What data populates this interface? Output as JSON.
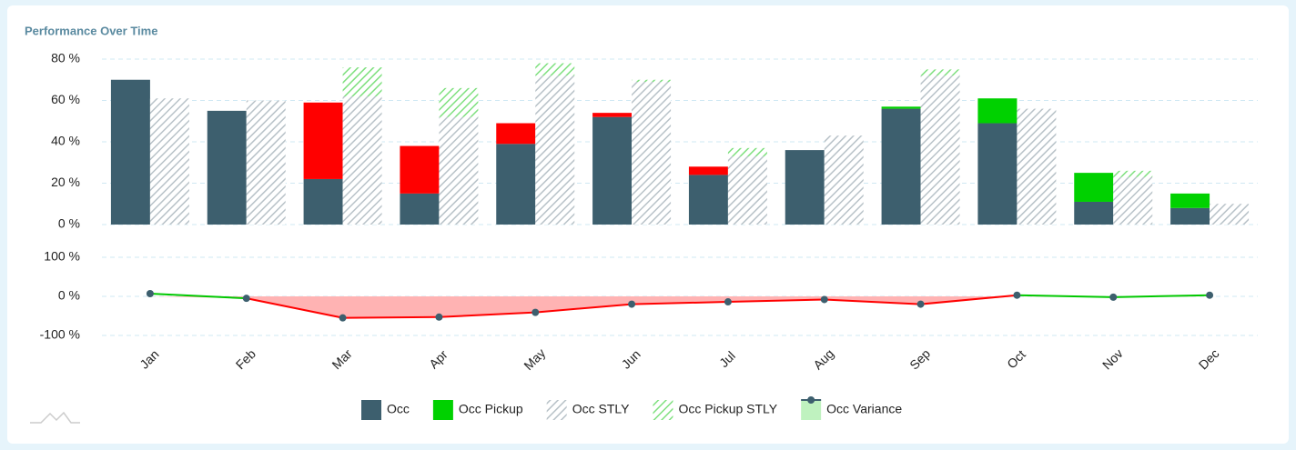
{
  "chart_data": {
    "type": "bar",
    "title": "Performance Over Time",
    "categories": [
      "Jan",
      "Feb",
      "Mar",
      "Apr",
      "May",
      "Jun",
      "Jul",
      "Aug",
      "Sep",
      "Oct",
      "Nov",
      "Dec"
    ],
    "ylim": [
      0,
      80
    ],
    "yticks": [
      {
        "value": 0,
        "label": "0 %"
      },
      {
        "value": 20,
        "label": "20 %"
      },
      {
        "value": 40,
        "label": "40 %"
      },
      {
        "value": 60,
        "label": "60 %"
      },
      {
        "value": 80,
        "label": "80 %"
      }
    ],
    "y2lim": [
      -100,
      100
    ],
    "y2ticks": [
      {
        "value": -100,
        "label": "-100 %"
      },
      {
        "value": 0,
        "label": "0 %"
      },
      {
        "value": 100,
        "label": "100 %"
      }
    ],
    "grid": true,
    "series": [
      {
        "name": "Occ",
        "color": "#3d5f6e",
        "stack": "a",
        "values": [
          70,
          55,
          22,
          15,
          39,
          52,
          24,
          36,
          56,
          49,
          11,
          8
        ]
      },
      {
        "name": "Occ Pickup",
        "color": "#00d100",
        "stack": "a",
        "point_colors": [
          "#00d100",
          "#00d100",
          "#ff0000",
          "#ff0000",
          "#ff0000",
          "#ff0000",
          "#ff0000",
          "#00d100",
          "#00d100",
          "#00d100",
          "#00d100",
          "#00d100"
        ],
        "values": [
          0,
          0,
          37,
          23,
          10,
          2,
          4,
          0,
          1,
          12,
          14,
          7
        ]
      },
      {
        "name": "Occ STLY",
        "color": "#b8c2c8",
        "stack": "b",
        "hatch": true,
        "values": [
          61,
          60,
          62,
          52,
          72,
          69,
          33,
          43,
          72,
          56,
          23,
          10
        ]
      },
      {
        "name": "Occ Pickup STLY",
        "color": "#7ee07e",
        "stack": "b",
        "hatch": true,
        "values": [
          0,
          0,
          14,
          14,
          6,
          1,
          4,
          0,
          3,
          0,
          3,
          0
        ]
      },
      {
        "name": "Occ Variance",
        "color": "#bff2bf",
        "axis": "y2",
        "type": "line",
        "negative_color": "#ff0000",
        "positive_color": "#00c800",
        "negative_fill": "#ffb3b3",
        "values": [
          7,
          -5,
          -55,
          -53,
          -41,
          -20,
          -14,
          -8,
          -20,
          3,
          -2,
          3
        ]
      }
    ]
  }
}
